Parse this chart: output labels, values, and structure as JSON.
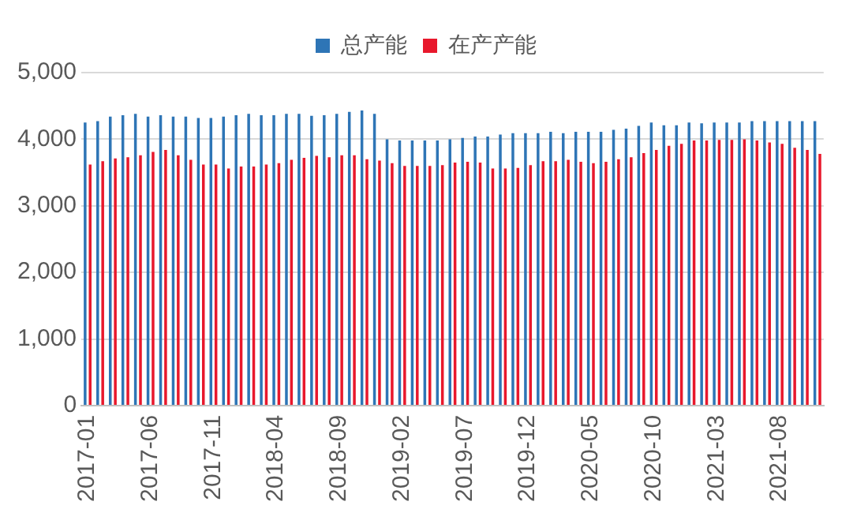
{
  "chart_data": {
    "type": "bar",
    "categories": [
      "2017-01",
      null,
      null,
      null,
      null,
      "2017-06",
      null,
      null,
      null,
      null,
      "2017-11",
      null,
      null,
      null,
      null,
      "2018-04",
      null,
      null,
      null,
      null,
      "2018-09",
      null,
      null,
      null,
      null,
      "2019-02",
      null,
      null,
      null,
      null,
      "2019-07",
      null,
      null,
      null,
      null,
      "2019-12",
      null,
      null,
      null,
      null,
      "2020-05",
      null,
      null,
      null,
      null,
      "2020-10",
      null,
      null,
      null,
      null,
      "2021-03",
      null,
      null,
      null,
      null,
      "2021-08",
      null,
      null,
      null
    ],
    "series": [
      {
        "name": "总产能",
        "color": "#2e75b6",
        "values": [
          4250,
          4270,
          4340,
          4360,
          4380,
          4340,
          4360,
          4340,
          4340,
          4320,
          4320,
          4340,
          4360,
          4380,
          4360,
          4360,
          4380,
          4380,
          4350,
          4360,
          4380,
          4410,
          4430,
          4380,
          4000,
          3980,
          3980,
          3980,
          3980,
          4000,
          4020,
          4040,
          4040,
          4070,
          4090,
          4090,
          4090,
          4110,
          4090,
          4110,
          4110,
          4110,
          4140,
          4160,
          4200,
          4250,
          4210,
          4210,
          4250,
          4240,
          4250,
          4250,
          4250,
          4270,
          4270,
          4270,
          4270,
          4270,
          4270
        ]
      },
      {
        "name": "在产产能",
        "color": "#e8182c",
        "values": [
          3620,
          3670,
          3710,
          3730,
          3760,
          3810,
          3840,
          3760,
          3690,
          3620,
          3620,
          3560,
          3590,
          3590,
          3620,
          3640,
          3690,
          3720,
          3750,
          3730,
          3760,
          3760,
          3700,
          3680,
          3640,
          3600,
          3600,
          3600,
          3610,
          3650,
          3660,
          3650,
          3560,
          3560,
          3570,
          3610,
          3670,
          3670,
          3690,
          3660,
          3640,
          3660,
          3700,
          3730,
          3790,
          3840,
          3900,
          3930,
          3980,
          3980,
          3990,
          3990,
          4000,
          3980,
          3950,
          3930,
          3870,
          3840,
          3780
        ]
      }
    ],
    "ylim": [
      0,
      5000
    ],
    "yticks": [
      {
        "value": 0,
        "label": "0"
      },
      {
        "value": 1000,
        "label": "1,000"
      },
      {
        "value": 2000,
        "label": "2,000"
      },
      {
        "value": 3000,
        "label": "3,000"
      },
      {
        "value": 4000,
        "label": "4,000"
      },
      {
        "value": 5000,
        "label": "5,000"
      }
    ],
    "grid": "y",
    "legend": "top"
  }
}
